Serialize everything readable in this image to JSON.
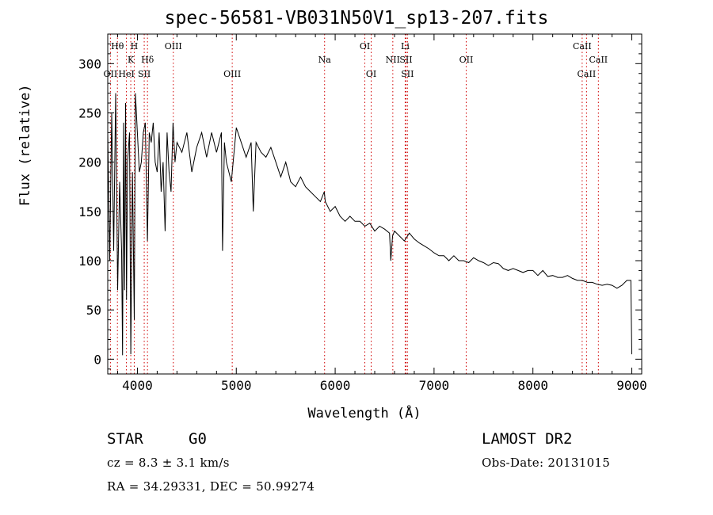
{
  "chart_data": {
    "type": "line",
    "title": "spec-56581-VB031N50V1_sp13-207.fits",
    "xlabel": "Wavelength (Å)",
    "ylabel": "Flux (relative)",
    "xlim": [
      3700,
      9100
    ],
    "ylim": [
      -15,
      330
    ],
    "xticks": [
      4000,
      5000,
      6000,
      7000,
      8000,
      9000
    ],
    "yticks": [
      0,
      50,
      100,
      150,
      200,
      250,
      300
    ],
    "grid": false,
    "series": [
      {
        "color": "#000000",
        "x": [
          3700,
          3720,
          3740,
          3760,
          3780,
          3800,
          3820,
          3840,
          3850,
          3860,
          3870,
          3880,
          3890,
          3900,
          3920,
          3933,
          3950,
          3968,
          3980,
          4000,
          4020,
          4040,
          4060,
          4080,
          4101,
          4120,
          4140,
          4160,
          4180,
          4200,
          4220,
          4240,
          4260,
          4280,
          4300,
          4320,
          4340,
          4360,
          4380,
          4400,
          4450,
          4500,
          4550,
          4600,
          4650,
          4700,
          4750,
          4800,
          4850,
          4861,
          4880,
          4900,
          4950,
          5000,
          5050,
          5100,
          5150,
          5172,
          5200,
          5250,
          5300,
          5350,
          5400,
          5450,
          5500,
          5550,
          5600,
          5650,
          5700,
          5750,
          5800,
          5850,
          5890,
          5900,
          5950,
          6000,
          6050,
          6100,
          6150,
          6200,
          6250,
          6300,
          6350,
          6400,
          6450,
          6500,
          6550,
          6563,
          6580,
          6600,
          6650,
          6700,
          6750,
          6800,
          6850,
          6900,
          6950,
          7000,
          7050,
          7100,
          7150,
          7200,
          7250,
          7300,
          7350,
          7400,
          7450,
          7500,
          7550,
          7600,
          7650,
          7700,
          7750,
          7800,
          7850,
          7900,
          7950,
          8000,
          8050,
          8100,
          8150,
          8200,
          8250,
          8300,
          8350,
          8400,
          8450,
          8500,
          8550,
          8600,
          8650,
          8700,
          8750,
          8800,
          8850,
          8900,
          8950,
          8990,
          9000
        ],
        "y": [
          230,
          100,
          250,
          110,
          270,
          70,
          180,
          110,
          4,
          240,
          70,
          260,
          60,
          200,
          230,
          5,
          190,
          40,
          270,
          230,
          190,
          200,
          230,
          240,
          120,
          230,
          220,
          240,
          200,
          190,
          230,
          170,
          200,
          130,
          230,
          190,
          170,
          240,
          200,
          220,
          210,
          230,
          190,
          215,
          230,
          205,
          230,
          210,
          230,
          110,
          220,
          200,
          180,
          235,
          220,
          205,
          220,
          150,
          220,
          210,
          205,
          215,
          200,
          185,
          200,
          180,
          175,
          185,
          175,
          170,
          165,
          160,
          170,
          160,
          150,
          155,
          145,
          140,
          145,
          140,
          140,
          135,
          138,
          130,
          135,
          132,
          128,
          100,
          125,
          130,
          125,
          120,
          128,
          122,
          118,
          115,
          112,
          108,
          105,
          105,
          100,
          105,
          100,
          100,
          98,
          103,
          100,
          98,
          95,
          98,
          97,
          92,
          90,
          92,
          90,
          88,
          90,
          90,
          85,
          90,
          84,
          85,
          83,
          83,
          85,
          82,
          80,
          80,
          78,
          78,
          76,
          75,
          76,
          75,
          72,
          75,
          80,
          80,
          5
        ]
      }
    ],
    "lines": [
      {
        "label": "Hθ",
        "x": 3798,
        "row": 1
      },
      {
        "label": "OII",
        "x": 3727,
        "row": 3
      },
      {
        "label": "K",
        "x": 3933,
        "row": 2
      },
      {
        "label": "H",
        "x": 3968,
        "row": 1
      },
      {
        "label": "HeI",
        "x": 3889,
        "row": 3
      },
      {
        "label": "Hδ",
        "x": 4102,
        "row": 2
      },
      {
        "label": "SII",
        "x": 4069,
        "row": 3
      },
      {
        "label": "OIII",
        "x": 4363,
        "row": 1
      },
      {
        "label": "OIII",
        "x": 4959,
        "row": 3
      },
      {
        "label": "Na",
        "x": 5893,
        "row": 2
      },
      {
        "label": "OI",
        "x": 6300,
        "row": 1
      },
      {
        "label": "OI",
        "x": 6364,
        "row": 3
      },
      {
        "label": "NII",
        "x": 6583,
        "row": 2
      },
      {
        "label": "Li",
        "x": 6708,
        "row": 1
      },
      {
        "label": "SII",
        "x": 6716,
        "row": 2
      },
      {
        "label": "SII",
        "x": 6731,
        "row": 3
      },
      {
        "label": "OII",
        "x": 7325,
        "row": 2
      },
      {
        "label": "CaII",
        "x": 8498,
        "row": 1
      },
      {
        "label": "CaII",
        "x": 8542,
        "row": 3
      },
      {
        "label": "CaII",
        "x": 8662,
        "row": 2
      }
    ]
  },
  "footer": {
    "object_class": "STAR",
    "subclass": "G0",
    "survey": "LAMOST DR2",
    "redshift": "cz = 8.3 ± 3.1 km/s",
    "obs_date": "Obs-Date: 20131015",
    "coords": "RA =  34.29331, DEC =  50.99274"
  }
}
